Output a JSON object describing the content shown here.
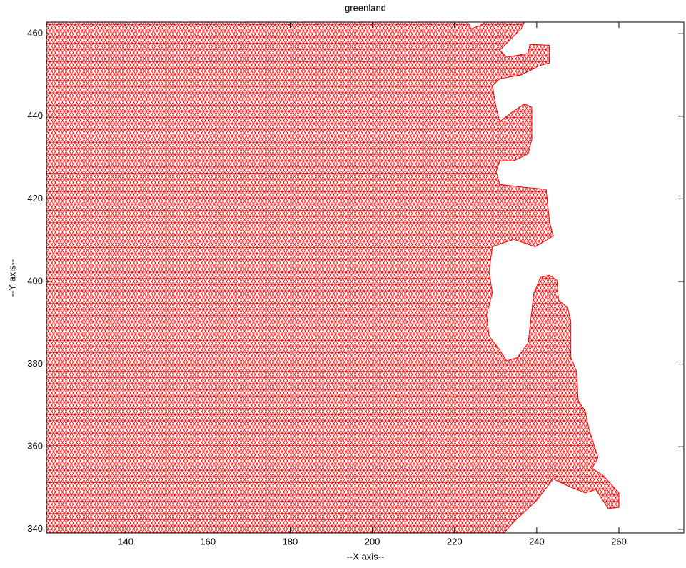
{
  "chart_data": {
    "type": "mesh",
    "title": "greenland",
    "xlabel": "--X axis--",
    "ylabel": "--Y axis--",
    "color": "#ff0000",
    "grid": false,
    "xlim": [
      120.7,
      275.8
    ],
    "ylim": [
      339.1,
      462.8
    ],
    "xticks": [
      140,
      160,
      180,
      200,
      220,
      240,
      260
    ],
    "yticks": [
      340,
      360,
      380,
      400,
      420,
      440,
      460
    ],
    "x": [
      120.7,
      223.2,
      224.0,
      226.1,
      227.5,
      237.0,
      236.2,
      231.0,
      232.7,
      237.9,
      238.3,
      243.1,
      243.1,
      240.5,
      236.2,
      231.0,
      229.2,
      230.1,
      231.0,
      234.4,
      237.0,
      238.8,
      238.8,
      237.9,
      234.4,
      231.0,
      230.1,
      231.0,
      237.0,
      242.3,
      243.1,
      244.0,
      239.6,
      234.4,
      229.2,
      228.4,
      229.2,
      227.8,
      228.4,
      231.0,
      232.7,
      235.3,
      237.9,
      239.3,
      240.9,
      243.1,
      244.9,
      245.3,
      247.5,
      248.3,
      248.3,
      249.7,
      250.1,
      251.8,
      252.7,
      254.9,
      253.5,
      256.1,
      260.0,
      260.0,
      257.4,
      254.4,
      251.8,
      247.5,
      244.0,
      240.0,
      234.4,
      232.0,
      120.7
    ],
    "values": [
      462.8,
      462.8,
      461.2,
      461.9,
      462.8,
      462.8,
      461.2,
      456.0,
      454.3,
      455.2,
      457.4,
      457.2,
      452.9,
      452.2,
      450.0,
      449.1,
      447.4,
      442.2,
      438.7,
      441.3,
      443.0,
      442.2,
      434.4,
      430.9,
      429.2,
      429.2,
      426.6,
      423.5,
      422.8,
      422.3,
      414.5,
      411.0,
      408.4,
      410.2,
      408.4,
      402.4,
      397.2,
      392.0,
      386.8,
      383.4,
      380.8,
      381.6,
      385.1,
      397.2,
      401.0,
      401.5,
      400.3,
      395.5,
      393.7,
      390.3,
      381.6,
      378.2,
      371.2,
      368.6,
      364.3,
      357.4,
      354.8,
      353.1,
      348.8,
      345.3,
      345.0,
      349.6,
      348.8,
      350.5,
      352.2,
      347.0,
      341.8,
      339.1,
      339.1
    ]
  }
}
